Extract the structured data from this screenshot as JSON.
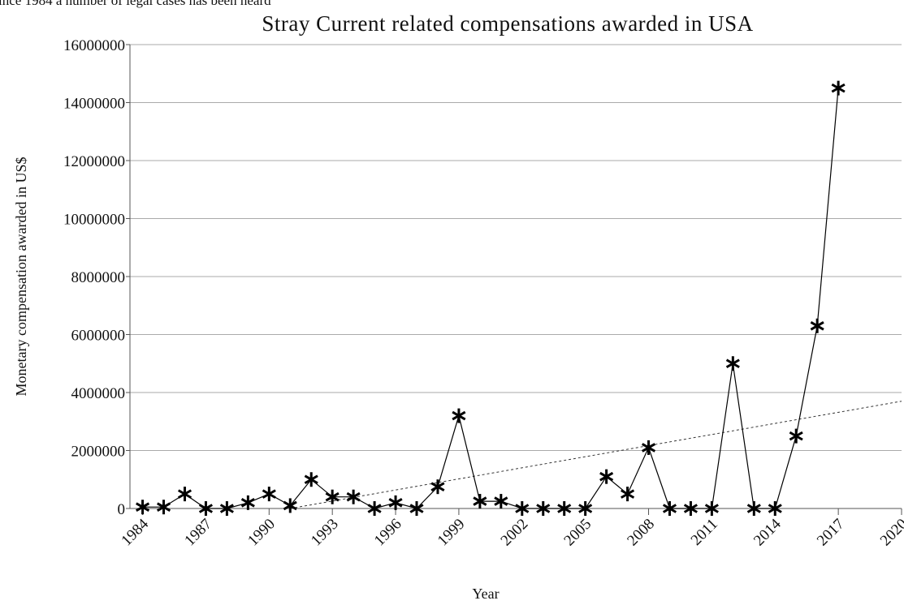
{
  "context_text": "ince 1984 a number of legal cases has been heard",
  "chart_data": {
    "type": "line",
    "title": "Stray Current related compensations awarded in USA",
    "x_label": "Year",
    "y_label": "Monetary compensation awarded in US$",
    "x": [
      1984,
      1985,
      1986,
      1987,
      1988,
      1989,
      1990,
      1991,
      1992,
      1993,
      1994,
      1995,
      1996,
      1997,
      1998,
      1999,
      2000,
      2001,
      2002,
      2003,
      2004,
      2005,
      2006,
      2007,
      2008,
      2009,
      2010,
      2011,
      2012,
      2013,
      2014,
      2015,
      2016,
      2017
    ],
    "series": [
      {
        "color": "#000000",
        "values": [
          50000,
          50000,
          500000,
          0,
          0,
          200000,
          500000,
          100000,
          1000000,
          400000,
          400000,
          0,
          200000,
          0,
          750000,
          3200000,
          250000,
          250000,
          0,
          0,
          0,
          0,
          1100000,
          500000,
          2100000,
          0,
          0,
          0,
          5000000,
          0,
          0,
          2500000,
          6300000,
          14500000
        ]
      }
    ],
    "trend": {
      "x": [
        1991,
        2020
      ],
      "values": [
        0,
        3700000
      ],
      "color": "#333333"
    },
    "xlim": [
      1983.4,
      2020
    ],
    "xticks": [
      1984,
      1987,
      1990,
      1993,
      1996,
      1999,
      2002,
      2005,
      2008,
      2011,
      2014,
      2017,
      2020
    ],
    "ylim": [
      0,
      16000000
    ],
    "yticks": [
      0,
      2000000,
      4000000,
      6000000,
      8000000,
      10000000,
      12000000,
      14000000,
      16000000
    ],
    "grid": true
  }
}
